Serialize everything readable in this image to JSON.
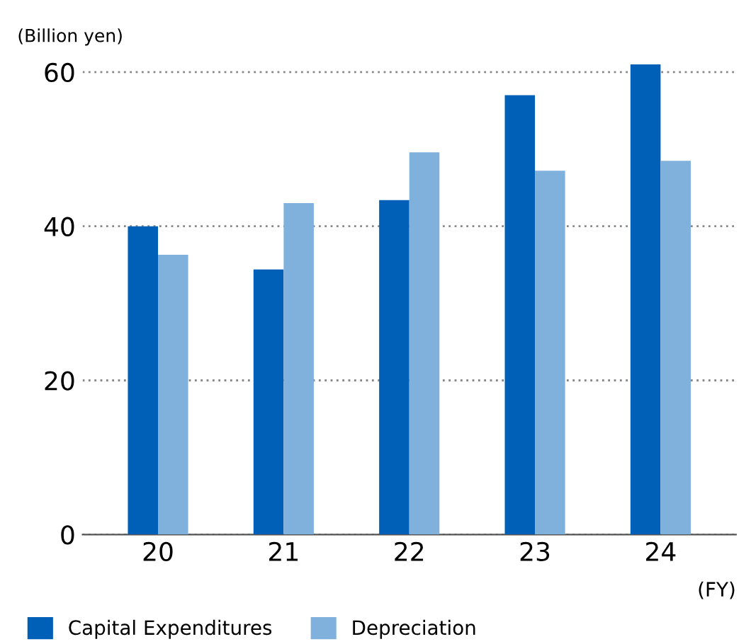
{
  "chart_data": {
    "type": "bar",
    "ylabel": "(Billion yen)",
    "xlabel": "(FY)",
    "categories": [
      "20",
      "21",
      "22",
      "23",
      "24"
    ],
    "series": [
      {
        "name": "Capital Expenditures",
        "color": "#0060b8",
        "values": [
          40.0,
          34.4,
          43.4,
          57.0,
          61.0
        ]
      },
      {
        "name": "Depreciation",
        "color": "#80b0dc",
        "values": [
          36.3,
          43.0,
          49.6,
          47.2,
          48.5
        ]
      }
    ],
    "ylim": [
      0,
      61
    ],
    "yticks": [
      0,
      20,
      40,
      60
    ],
    "grid": "y",
    "legend": "bottom"
  }
}
